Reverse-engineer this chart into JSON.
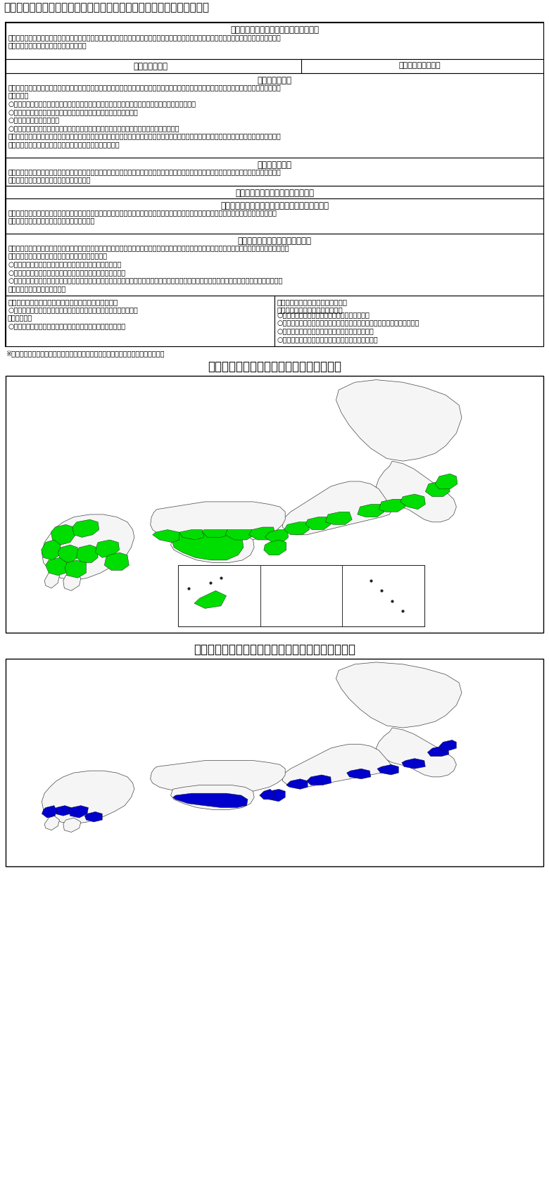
{
  "title": "図表１　南海トラフ地震に係る地震防災対策の推進に関する特別措置法",
  "bg_color": "#ffffff",
  "figure_width": 7.8,
  "figure_height": 16.88,
  "s1_title": "南海トラフ地震防災対策推進地域の指定",
  "s1_body": "南海トラフ地震が発生した場合に著しい地震災害が生ずるおそれがあるため、地震防災対策を推進する必要がある地域を、科学的に想定し得る最大\n規模の地震を想定し、内閣総理大臣が指定",
  "s2_left": "基本計画の作成",
  "s2_right": "中央防災会議が作成",
  "s3_title": "推進計画の作成",
  "s3_body": "指定行政機関の長及び指定公共機関は、防災業務計画において、次の事項を定める（推進計画）とともに、津波避難対策施設整備の目標及び達成期\n間を定める\n○　避難場所、避難経路、消防用施設設等の地震防災上緊急に整備すべき施設等の整備に関する事項\n○　津波からの防護、円滑な避難の確保及び迅速な救助に関する事項\n○　防災訓練に関する事項\n○　国、地方公共団体その他の関係者の連携協力の確保に関する事項　　　　　　　　　等\n地方防災会議等（都府県及び市町村）は地域防災計画において、上記の事項を定めるよう努め、市町村防災会議はこれらの事項に加え、津波避難対\n策緊急事業計画の基本となるべき事項を定めることができる",
  "s4_title": "対策計画の作成",
  "s4_body": "推進地域内の医療機関、百貨店等不特定多数の者が出入りする施設の管理者等は、推進地域の指定から六月以内に、津波からの円滑な避難の確保に\n関する計画を作成し、都府県知事に届け出る",
  "s5_title": "南海トラフ地震防災対策推進協議会",
  "s6_title": "南海トラフ地震津波避難対策特別強化地域の指定",
  "s6_body": "推進地域のうち、南海トラフ地震に伴い発生する津波に対し、津波避難対策を特別に強化すべき地域を南海トラフ地震津波避難対策特別強化地域\n（特別強化地域）として、内閣総理大臣が指定",
  "s7_title": "津波避難対策緊急事業計画の作成",
  "s7_body": "市町村長は、都府県知事の意見を聴き、内閣総理大臣の同意を得て、以下の施設の整備（津波避難対策緊急事業）に関する計画を作成するとともに、当\n該津波避難対策緊急事業の目標及び達成期間を定める\n○　津波からの避難の用に供する避難施設その他の避難場所\n○　避難場所までの避難の用に供する避難路その他の避難経路\n○　集団移転促進事業及び集団移転促進事業に関連して移転が必要と認められる施設であって、高齢者、障害者、乳幼児、児童、生徒等の要配慮者\n　が利用する政令で定める施設",
  "s8a_title": "津波避難対策緊急事業に係る国の負担又は補助の特別等",
  "s8a_body": "○　津波避難対策緊急事業に要する経費に対する国の負担又は補助の\n　割合の特例\n○　集団移転促進事業関連の施設移転に対する財政上の配慮等",
  "s8b_title": "津波避難対策緊急事業計画に基づく\n集団移転促進事業に係る特別措置",
  "s8b_body": "○　農地法の特例（農地転用の許可要件の緩和）\n○　集団移転促進法の特例（住宅団地の用地の取得等に要する経費の補助）\n○　国土利用計画法等による協議等についての配慮\n○　地方財政法の特例（施設の除却に地方債を充当）",
  "footnote": "※東南海・南海地震に係る地震防災対策の推進に関する特別措置法の改正により措置",
  "map2_title": "図表２　南海トラフ地震防災対策推進地域",
  "map3_title": "図表３　南海トラフ地震津波避難対策特別強化地域",
  "green_color": "#00dd00",
  "blue_color": "#0000cc",
  "land_color": "#f5f5f5",
  "border_color": "#444444"
}
